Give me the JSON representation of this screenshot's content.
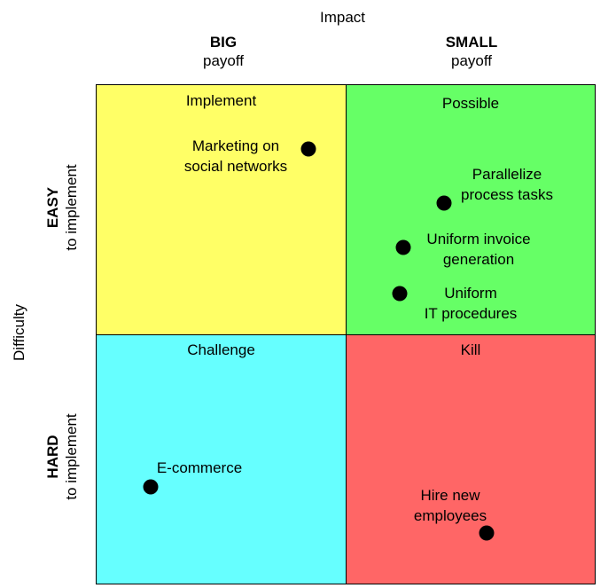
{
  "axes": {
    "x_title": "Impact",
    "y_title": "Difficulty"
  },
  "columns": [
    {
      "main": "BIG",
      "sub": "payoff"
    },
    {
      "main": "SMALL",
      "sub": "payoff"
    }
  ],
  "rows": [
    {
      "main": "EASY",
      "sub": "to implement"
    },
    {
      "main": "HARD",
      "sub": "to implement"
    }
  ],
  "quadrants": [
    {
      "title": "Implement",
      "color": "#ffff66"
    },
    {
      "title": "Possible",
      "color": "#66ff66"
    },
    {
      "title": "Challenge",
      "color": "#66ffff"
    },
    {
      "title": "Kill",
      "color": "#ff6666"
    }
  ],
  "items": [
    {
      "line1": "Marketing on",
      "line2": "social networks"
    },
    {
      "line1": "Parallelize",
      "line2": "process tasks"
    },
    {
      "line1": "Uniform invoice",
      "line2": "generation"
    },
    {
      "line1": "Uniform",
      "line2": "IT procedures"
    },
    {
      "line1": "E-commerce",
      "line2": ""
    },
    {
      "line1": "Hire new",
      "line2": "employees"
    }
  ]
}
